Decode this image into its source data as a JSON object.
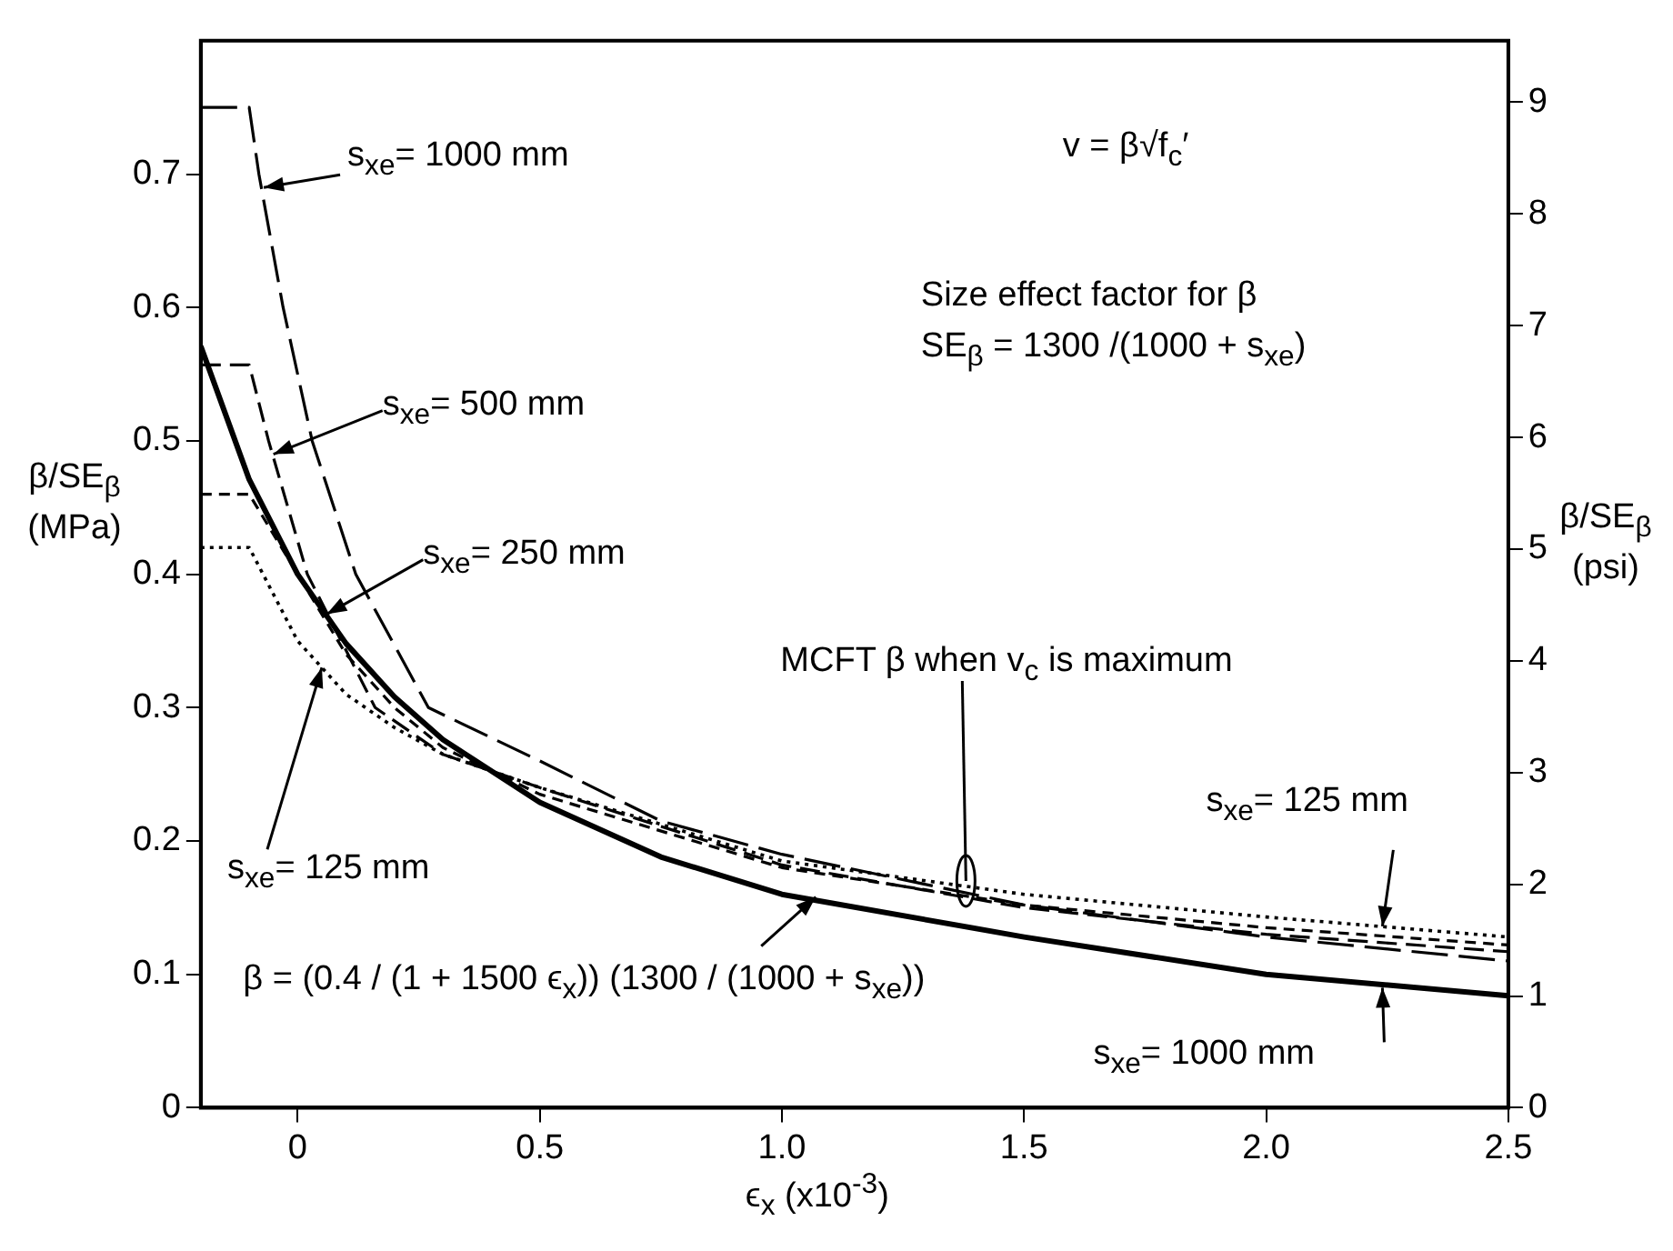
{
  "chart_data": {
    "type": "line",
    "xlabel": "ϵ$_{x}$  (x10$^{-3}$)",
    "ylabel": "β/SE$_{β}$ (MPa)",
    "y2label": "β/SE$_{β}$ (psi)",
    "xlim": [
      -0.2,
      2.5
    ],
    "xticks": [
      0,
      0.5,
      {
        "value": 1,
        "label": "1.0"
      },
      1.5,
      {
        "value": 2,
        "label": "2.0"
      },
      2.5
    ],
    "ylim": [
      0,
      0.8
    ],
    "yticks": [
      0,
      0.1,
      0.2,
      0.3,
      0.4,
      0.5,
      0.6,
      0.7
    ],
    "y2lim": [
      0,
      9.55
    ],
    "y2ticks": [
      0,
      1,
      2,
      3,
      4,
      5,
      6,
      7,
      8,
      9
    ],
    "series": [
      {
        "color": "#000000",
        "line_style": "solid",
        "x": [
          -0.2,
          -0.1,
          0,
          0.1,
          0.2,
          0.3,
          0.5,
          0.75,
          1.0,
          1.5,
          2.0,
          2.5
        ],
        "values": [
          0.571,
          0.471,
          0.4,
          0.348,
          0.308,
          0.276,
          0.229,
          0.188,
          0.16,
          0.128,
          0.1,
          0.084
        ]
      },
      {
        "color": "#000000",
        "line_style": "dashed",
        "x": [
          -0.2,
          -0.1,
          -0.08,
          -0.03,
          0.03,
          0.12,
          0.27,
          0.5,
          0.75,
          1.0,
          1.5,
          2.0,
          2.5
        ],
        "values": [
          0.75,
          0.75,
          0.7,
          0.6,
          0.5,
          0.4,
          0.3,
          0.26,
          0.215,
          0.19,
          0.152,
          0.128,
          0.11
        ]
      },
      {
        "color": "#000000",
        "line_style": "dashed",
        "x": [
          -0.2,
          -0.1,
          -0.06,
          0.02,
          0.16,
          0.3,
          0.5,
          1.0,
          1.5,
          2.0,
          2.5
        ],
        "values": [
          0.557,
          0.557,
          0.5,
          0.4,
          0.3,
          0.265,
          0.24,
          0.182,
          0.15,
          0.13,
          0.117
        ]
      },
      {
        "color": "#000000",
        "line_style": "dashed",
        "x": [
          -0.2,
          -0.1,
          0,
          0.1,
          0.2,
          0.3,
          0.5,
          1.0,
          1.5,
          2.0,
          2.5
        ],
        "values": [
          0.46,
          0.46,
          0.4,
          0.34,
          0.3,
          0.27,
          0.235,
          0.18,
          0.152,
          0.135,
          0.122
        ]
      },
      {
        "color": "#000000",
        "line_style": "dotted",
        "x": [
          -0.2,
          -0.1,
          0,
          0.1,
          0.2,
          0.3,
          0.5,
          1.0,
          1.5,
          2.0,
          2.5
        ],
        "values": [
          0.42,
          0.42,
          0.35,
          0.31,
          0.285,
          0.265,
          0.24,
          0.185,
          0.16,
          0.143,
          0.128
        ]
      }
    ],
    "annotations": [
      {
        "text": "s$_{xe}$= 1000 mm",
        "x": -0.07,
        "y": 0.69
      },
      {
        "text": "s$_{xe}$= 500 mm",
        "x": -0.05,
        "y": 0.49
      },
      {
        "text": "s$_{xe}$= 250 mm",
        "x": 0.06,
        "y": 0.37
      },
      {
        "text": "s$_{xe}$= 125 mm",
        "x": 0.05,
        "y": 0.33
      },
      {
        "text": "s$_{xe}$= 125 mm",
        "x": 2.24,
        "y": 0.136
      },
      {
        "text": "s$_{xe}$= 1000 mm",
        "x": 2.24,
        "y": 0.09
      },
      {
        "text": "MCFT β when v$_{c}$ is maximum",
        "x": 1.38,
        "y": 0.17
      },
      "v = β√f$_{c}$′",
      "Size effect factor for β",
      "SE$_{β}$ = 1300 /(1000 + s$_{xe}$)",
      {
        "text": "β = (0.4 / (1 + 1500 ϵ$_{x}$)) (1300 / (1000 + s$_{xe}$))",
        "x": 1.07,
        "y": 0.158
      }
    ]
  }
}
